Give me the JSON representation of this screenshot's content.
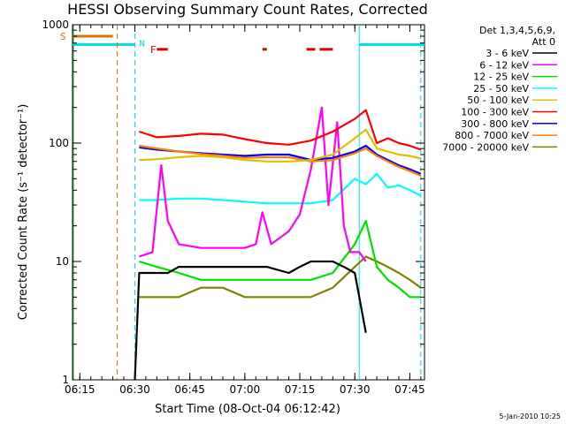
{
  "chart_data": {
    "type": "line",
    "title": "HESSI Observing Summary Count Rates, Corrected",
    "xlabel": "Start Time (08-Oct-04 06:12:42)",
    "ylabel": "Corrected Count Rate (s⁻¹ detector⁻¹)",
    "yscale": "log",
    "ylim": [
      1,
      1000
    ],
    "xlim_minutes": [
      6.2167,
      7.8167
    ],
    "x_tick_labels": [
      "06:15",
      "06:30",
      "06:45",
      "07:00",
      "07:15",
      "07:30",
      "07:45"
    ],
    "x_tick_minutes": [
      6.25,
      6.5,
      6.75,
      7.0,
      7.25,
      7.5,
      7.75
    ],
    "y_tick_labels": [
      "1",
      "10",
      "100",
      "1000"
    ],
    "y_tick_values": [
      1,
      10,
      100,
      1000
    ],
    "legend_title_lines": [
      "Det 1,3,4,5,6,9,",
      "Att 0"
    ],
    "legend_position": "right",
    "footer_date": "5-Jan-2010 10:25",
    "flags": {
      "S": {
        "label": "S",
        "color": "#e07000",
        "value": 800,
        "x": [
          6.2167,
          6.4
        ]
      },
      "N": {
        "label": "N",
        "color": "#00e0f0",
        "value": 680
      },
      "F": {
        "label": "F",
        "color": "#e00000",
        "value": 620
      }
    },
    "series": [
      {
        "name": "3 - 6 keV",
        "color": "#000000",
        "x": [
          6.5,
          6.52,
          6.6,
          6.65,
          6.7,
          6.8,
          6.9,
          7.0,
          7.1,
          7.2,
          7.25,
          7.3,
          7.35,
          7.4,
          7.45,
          7.5,
          7.55
        ],
        "values": [
          1,
          8,
          8,
          8,
          9,
          9,
          9,
          9,
          9,
          8,
          9,
          10,
          10,
          10,
          9,
          8,
          2.5
        ]
      },
      {
        "name": "6 - 12 keV",
        "color": "#ff00ff",
        "x": [
          6.52,
          6.58,
          6.62,
          6.65,
          6.7,
          6.8,
          6.9,
          7.0,
          7.05,
          7.08,
          7.12,
          7.2,
          7.25,
          7.3,
          7.35,
          7.38,
          7.42,
          7.45,
          7.48,
          7.52,
          7.55
        ],
        "values": [
          11,
          12,
          65,
          22,
          14,
          13,
          13,
          13,
          14,
          26,
          14,
          18,
          25,
          60,
          200,
          30,
          150,
          20,
          12,
          12,
          10
        ]
      },
      {
        "name": "12 - 25 keV",
        "color": "#00e000",
        "x": [
          6.52,
          6.6,
          6.7,
          6.8,
          6.9,
          7.0,
          7.1,
          7.2,
          7.3,
          7.4,
          7.5,
          7.55,
          7.6,
          7.65,
          7.7,
          7.75,
          7.8
        ],
        "values": [
          10,
          9,
          8,
          7,
          7,
          7,
          7,
          7,
          7,
          8,
          14,
          22,
          9,
          7,
          6,
          5,
          5
        ]
      },
      {
        "name": "25 - 50 keV",
        "color": "#00ffff",
        "x": [
          6.52,
          6.6,
          6.7,
          6.8,
          6.9,
          7.0,
          7.1,
          7.2,
          7.3,
          7.4,
          7.5,
          7.55,
          7.6,
          7.65,
          7.7,
          7.75,
          7.8
        ],
        "values": [
          33,
          33,
          34,
          34,
          33,
          32,
          31,
          31,
          31,
          33,
          50,
          45,
          55,
          42,
          44,
          40,
          36
        ]
      },
      {
        "name": "50 - 100 keV",
        "color": "#e0c000",
        "x": [
          6.52,
          6.6,
          6.7,
          6.8,
          6.9,
          7.0,
          7.1,
          7.2,
          7.3,
          7.4,
          7.5,
          7.55,
          7.6,
          7.65,
          7.7,
          7.75,
          7.8
        ],
        "values": [
          72,
          73,
          76,
          78,
          76,
          72,
          70,
          70,
          72,
          80,
          110,
          130,
          90,
          85,
          80,
          78,
          74
        ]
      },
      {
        "name": "100 - 300 keV",
        "color": "#ff0000",
        "x": [
          6.52,
          6.6,
          6.7,
          6.8,
          6.9,
          7.0,
          7.1,
          7.2,
          7.3,
          7.4,
          7.5,
          7.55,
          7.6,
          7.65,
          7.7,
          7.75,
          7.8
        ],
        "values": [
          125,
          112,
          115,
          120,
          118,
          108,
          100,
          97,
          105,
          125,
          160,
          190,
          100,
          110,
          100,
          95,
          88
        ]
      },
      {
        "name": "300 - 800 keV",
        "color": "#0000ff",
        "x": [
          6.52,
          6.6,
          6.7,
          6.8,
          6.9,
          7.0,
          7.1,
          7.2,
          7.3,
          7.4,
          7.5,
          7.55,
          7.6,
          7.65,
          7.7,
          7.75,
          7.8
        ],
        "values": [
          92,
          88,
          85,
          82,
          80,
          78,
          80,
          80,
          72,
          75,
          85,
          95,
          80,
          72,
          65,
          60,
          55
        ]
      },
      {
        "name": "800 - 7000 keV",
        "color": "#ff8000",
        "x": [
          6.52,
          6.6,
          6.7,
          6.8,
          6.9,
          7.0,
          7.1,
          7.2,
          7.3,
          7.4,
          7.5,
          7.55,
          7.6,
          7.65,
          7.7,
          7.75,
          7.8
        ],
        "values": [
          95,
          90,
          85,
          81,
          78,
          75,
          76,
          76,
          70,
          72,
          82,
          90,
          78,
          70,
          63,
          58,
          53
        ]
      },
      {
        "name": "7000 - 20000 keV",
        "color": "#808000",
        "x": [
          6.52,
          6.6,
          6.7,
          6.8,
          6.9,
          7.0,
          7.1,
          7.2,
          7.3,
          7.4,
          7.5,
          7.55,
          7.6,
          7.65,
          7.7,
          7.75,
          7.8
        ],
        "values": [
          5,
          5,
          5,
          6,
          6,
          5,
          5,
          5,
          5,
          6,
          9,
          11,
          10,
          9,
          8,
          7,
          6
        ]
      }
    ]
  }
}
